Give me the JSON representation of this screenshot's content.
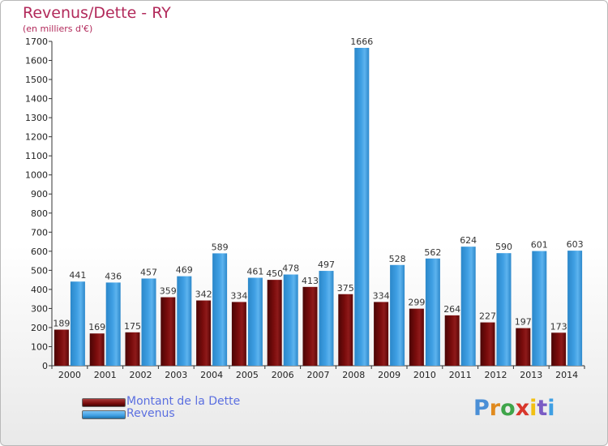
{
  "header": {
    "title": "Revenus/Dette - RY",
    "unit": "(en milliers d'€)"
  },
  "colors": {
    "debt": "#7a0c0c",
    "revenue": "#3f9fe3",
    "title": "#b22a5b",
    "legend_text": "#5b6fe0"
  },
  "legend": {
    "items": [
      {
        "label": "Montant de la Dette",
        "color": "#7a0c0c"
      },
      {
        "label": "Revenus",
        "color": "#3f9fe3"
      }
    ]
  },
  "logo": {
    "text": "Proxiti"
  },
  "chart_data": {
    "type": "bar",
    "title": "Revenus/Dette - RY",
    "subtitle": "(en milliers d'€)",
    "categories": [
      "2000",
      "2001",
      "2002",
      "2003",
      "2004",
      "2005",
      "2006",
      "2007",
      "2008",
      "2009",
      "2010",
      "2011",
      "2012",
      "2013",
      "2014"
    ],
    "series": [
      {
        "name": "Montant de la Dette",
        "color": "#7a0c0c",
        "values": [
          189,
          169,
          175,
          359,
          342,
          334,
          450,
          413,
          375,
          334,
          299,
          264,
          227,
          197,
          173
        ]
      },
      {
        "name": "Revenus",
        "color": "#3f9fe3",
        "values": [
          441,
          436,
          457,
          469,
          589,
          461,
          478,
          497,
          1666,
          528,
          562,
          624,
          590,
          601,
          603
        ]
      }
    ],
    "ylim": [
      0,
      1700
    ],
    "yticks": [
      0,
      100,
      200,
      300,
      400,
      500,
      600,
      700,
      800,
      900,
      1000,
      1100,
      1200,
      1300,
      1400,
      1500,
      1600,
      1700
    ],
    "grid": false,
    "legend_position": "bottom-left"
  }
}
